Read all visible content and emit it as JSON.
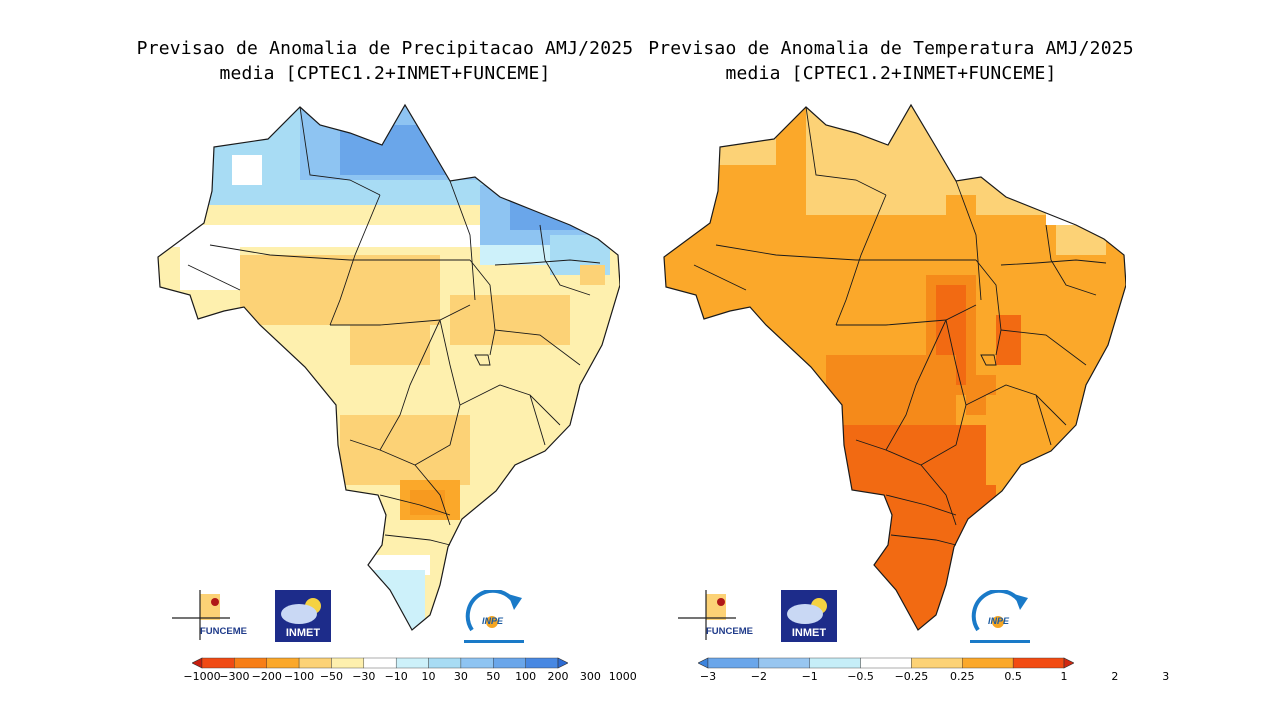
{
  "panels": {
    "precipitation": {
      "title_line1": "Previsao de Anomalia de Precipitacao AMJ/2025",
      "title_line2": "media [CPTEC1.2+INMET+FUNCEME]",
      "legend": {
        "ticks": [
          "-1000",
          "-300",
          "-200",
          "-100",
          "-50",
          "-30",
          "-10",
          "10",
          "30",
          "50",
          "100",
          "200",
          "300",
          "1000"
        ],
        "colors": [
          "#c81e0e",
          "#f04a14",
          "#f77e16",
          "#fba82a",
          "#fcd276",
          "#fef0ae",
          "#ffffff",
          "#cdf1fa",
          "#a8dcf4",
          "#8ec4f2",
          "#6aa6ea",
          "#4888e2",
          "#2d6bd3"
        ]
      }
    },
    "temperature": {
      "title_line1": "Previsao de Anomalia de Temperatura AMJ/2025",
      "title_line2": "media [CPTEC1.2+INMET+FUNCEME]",
      "legend": {
        "ticks": [
          "-3",
          "-2",
          "-1",
          "-0.5",
          "-0.25",
          "0.25",
          "0.5",
          "1",
          "2",
          "3"
        ],
        "colors": [
          "#3c84dd",
          "#6aa6ea",
          "#98c6f0",
          "#c6eef8",
          "#ffffff",
          "#fcd276",
          "#fba82a",
          "#f24b12",
          "#d02810"
        ]
      }
    }
  },
  "logos": {
    "funceme": "FUNCEME",
    "inmet": "INMET",
    "inpe": "INPE"
  },
  "palette": {
    "boundary": "#1a1a1a"
  }
}
